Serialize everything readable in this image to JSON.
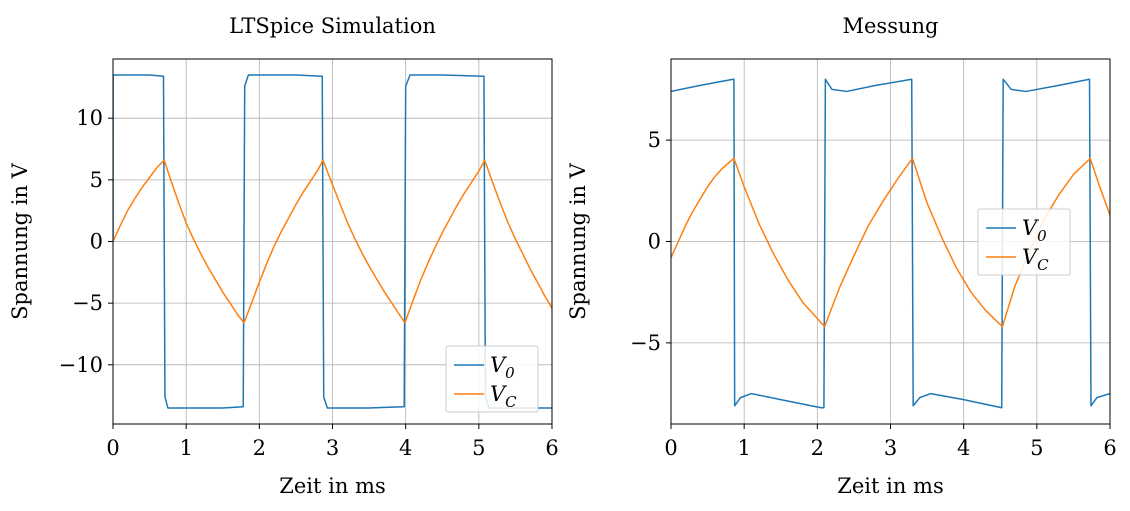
{
  "chart_data": [
    {
      "type": "line",
      "title": "LTSpice Simulation",
      "xlabel": "Zeit in ms",
      "ylabel": "Spannung in V",
      "xlim": [
        0,
        6
      ],
      "ylim": [
        -14.8,
        14.8
      ],
      "xticks": [
        0,
        1,
        2,
        3,
        4,
        5,
        6
      ],
      "yticks": [
        -10,
        -5,
        0,
        5,
        10
      ],
      "grid": true,
      "legend_position": "lower-right",
      "series": [
        {
          "name": "V_0",
          "color": "#1f77b4",
          "x": [
            0,
            0.001,
            0.5,
            0.69,
            0.7,
            0.71,
            0.75,
            1.0,
            1.5,
            1.78,
            1.79,
            1.8,
            1.85,
            2.5,
            2.86,
            2.87,
            2.88,
            2.93,
            3.5,
            3.98,
            3.99,
            4.0,
            4.06,
            4.5,
            5.07,
            5.08,
            5.09,
            5.14,
            6.0
          ],
          "values": [
            0,
            13.5,
            13.5,
            13.4,
            0,
            -12.6,
            -13.5,
            -13.5,
            -13.5,
            -13.4,
            0,
            12.6,
            13.5,
            13.5,
            13.4,
            0,
            -12.6,
            -13.5,
            -13.5,
            -13.4,
            0,
            12.6,
            13.5,
            13.5,
            13.4,
            0,
            -12.6,
            -13.5,
            -13.5
          ]
        },
        {
          "name": "V_C",
          "color": "#ff7f0e",
          "x": [
            0,
            0.1,
            0.2,
            0.3,
            0.4,
            0.5,
            0.6,
            0.7,
            0.8,
            0.9,
            1.0,
            1.1,
            1.2,
            1.3,
            1.4,
            1.5,
            1.6,
            1.7,
            1.79,
            1.9,
            2.0,
            2.1,
            2.2,
            2.3,
            2.4,
            2.5,
            2.6,
            2.7,
            2.8,
            2.87,
            3.0,
            3.1,
            3.2,
            3.3,
            3.4,
            3.5,
            3.6,
            3.7,
            3.8,
            3.9,
            3.99,
            4.1,
            4.2,
            4.3,
            4.4,
            4.5,
            4.6,
            4.7,
            4.8,
            4.9,
            5.0,
            5.08,
            5.2,
            5.3,
            5.4,
            5.5,
            5.6,
            5.7,
            5.8,
            5.9,
            6.0
          ],
          "values": [
            0,
            1.3,
            2.5,
            3.5,
            4.4,
            5.2,
            6.0,
            6.6,
            4.8,
            3.1,
            1.5,
            0.2,
            -1.0,
            -2.1,
            -3.1,
            -4.1,
            -5.0,
            -5.9,
            -6.6,
            -4.9,
            -3.3,
            -1.8,
            -0.4,
            0.8,
            1.9,
            3.0,
            4.0,
            4.9,
            5.8,
            6.6,
            4.6,
            3.1,
            1.6,
            0.3,
            -0.9,
            -2.0,
            -3.0,
            -4.0,
            -4.9,
            -5.8,
            -6.6,
            -4.8,
            -3.2,
            -1.8,
            -0.5,
            0.7,
            1.8,
            2.9,
            3.9,
            4.8,
            5.7,
            6.6,
            4.6,
            3.0,
            1.5,
            0.2,
            -1.0,
            -2.2,
            -3.3,
            -4.4,
            -5.4
          ]
        }
      ]
    },
    {
      "type": "line",
      "title": "Messung",
      "xlabel": "Zeit in ms",
      "ylabel": "Spannung in V",
      "xlim": [
        0,
        6
      ],
      "ylim": [
        -9.0,
        9.0
      ],
      "xticks": [
        0,
        1,
        2,
        3,
        4,
        5,
        6
      ],
      "yticks": [
        -5,
        0,
        5
      ],
      "grid": true,
      "legend_position": "center-right",
      "series": [
        {
          "name": "V_0",
          "color": "#1f77b4",
          "x": [
            0,
            0.4,
            0.85,
            0.86,
            0.87,
            0.95,
            1.1,
            1.5,
            2.05,
            2.09,
            2.1,
            2.11,
            2.2,
            2.4,
            2.8,
            3.29,
            3.3,
            3.31,
            3.4,
            3.55,
            4.0,
            4.52,
            4.53,
            4.54,
            4.65,
            4.85,
            5.3,
            5.72,
            5.73,
            5.74,
            5.82,
            6.0
          ],
          "values": [
            7.4,
            7.7,
            8.0,
            8.0,
            -8.1,
            -7.7,
            -7.5,
            -7.8,
            -8.2,
            -8.2,
            0,
            8.0,
            7.5,
            7.4,
            7.7,
            8.0,
            0,
            -8.1,
            -7.7,
            -7.5,
            -7.8,
            -8.2,
            0,
            8.0,
            7.5,
            7.4,
            7.7,
            8.0,
            0,
            -8.1,
            -7.7,
            -7.5
          ]
        },
        {
          "name": "V_C",
          "color": "#ff7f0e",
          "x": [
            0,
            0.1,
            0.2,
            0.3,
            0.4,
            0.5,
            0.6,
            0.7,
            0.86,
            1.0,
            1.2,
            1.4,
            1.6,
            1.8,
            2.0,
            2.1,
            2.3,
            2.5,
            2.7,
            2.9,
            3.1,
            3.3,
            3.5,
            3.7,
            3.9,
            4.1,
            4.3,
            4.53,
            4.7,
            4.9,
            5.1,
            5.3,
            5.5,
            5.73,
            5.85,
            6.0
          ],
          "values": [
            -0.8,
            0.0,
            0.8,
            1.5,
            2.1,
            2.7,
            3.2,
            3.6,
            4.1,
            2.7,
            0.9,
            -0.6,
            -1.9,
            -3.0,
            -3.8,
            -4.2,
            -2.3,
            -0.7,
            0.8,
            2.0,
            3.1,
            4.1,
            1.9,
            0.2,
            -1.3,
            -2.5,
            -3.4,
            -4.2,
            -2.2,
            -0.5,
            1.1,
            2.3,
            3.3,
            4.1,
            2.8,
            1.3
          ]
        }
      ]
    }
  ]
}
